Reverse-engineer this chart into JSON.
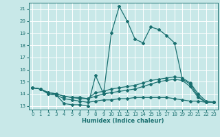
{
  "title": "",
  "xlabel": "Humidex (Indice chaleur)",
  "ylabel": "",
  "xlim": [
    -0.5,
    23.5
  ],
  "ylim": [
    12.7,
    21.5
  ],
  "yticks": [
    13,
    14,
    15,
    16,
    17,
    18,
    19,
    20,
    21
  ],
  "xticks": [
    0,
    1,
    2,
    3,
    4,
    5,
    6,
    7,
    8,
    9,
    10,
    11,
    12,
    13,
    14,
    15,
    16,
    17,
    18,
    19,
    20,
    21,
    22,
    23
  ],
  "background_color": "#c8e8e8",
  "grid_color": "#ffffff",
  "line_color": "#1a7070",
  "series": [
    {
      "x": [
        0,
        1,
        2,
        3,
        4,
        5,
        6,
        7,
        8,
        9,
        10,
        11,
        12,
        13,
        14,
        15,
        16,
        17,
        18,
        19,
        20,
        21,
        22,
        23
      ],
      "y": [
        14.5,
        14.4,
        14.0,
        13.9,
        13.2,
        13.1,
        13.1,
        13.0,
        15.5,
        14.0,
        19.0,
        21.2,
        20.0,
        18.5,
        18.2,
        19.5,
        19.3,
        18.8,
        18.2,
        15.2,
        14.8,
        13.8,
        13.3,
        13.3
      ]
    },
    {
      "x": [
        0,
        1,
        2,
        3,
        4,
        5,
        6,
        7,
        8,
        9,
        10,
        11,
        12,
        13,
        14,
        15,
        16,
        17,
        18,
        19,
        20,
        21,
        22,
        23
      ],
      "y": [
        14.5,
        14.4,
        14.1,
        14.0,
        13.8,
        13.7,
        13.7,
        13.6,
        14.1,
        14.2,
        14.4,
        14.5,
        14.6,
        14.7,
        14.9,
        15.1,
        15.2,
        15.3,
        15.4,
        15.3,
        14.9,
        14.0,
        13.4,
        13.3
      ]
    },
    {
      "x": [
        0,
        1,
        2,
        3,
        4,
        5,
        6,
        7,
        8,
        9,
        10,
        11,
        12,
        13,
        14,
        15,
        16,
        17,
        18,
        19,
        20,
        21,
        22,
        23
      ],
      "y": [
        14.5,
        14.4,
        14.1,
        14.0,
        13.8,
        13.7,
        13.6,
        13.6,
        13.8,
        14.0,
        14.1,
        14.2,
        14.3,
        14.4,
        14.6,
        14.8,
        15.0,
        15.1,
        15.2,
        15.1,
        14.6,
        13.7,
        13.3,
        13.3
      ]
    },
    {
      "x": [
        0,
        1,
        2,
        3,
        4,
        5,
        6,
        7,
        8,
        9,
        10,
        11,
        12,
        13,
        14,
        15,
        16,
        17,
        18,
        19,
        20,
        21,
        22,
        23
      ],
      "y": [
        14.5,
        14.4,
        14.0,
        13.9,
        13.6,
        13.5,
        13.4,
        13.3,
        13.4,
        13.5,
        13.5,
        13.6,
        13.6,
        13.7,
        13.7,
        13.7,
        13.7,
        13.7,
        13.6,
        13.5,
        13.4,
        13.4,
        13.3,
        13.3
      ]
    }
  ]
}
